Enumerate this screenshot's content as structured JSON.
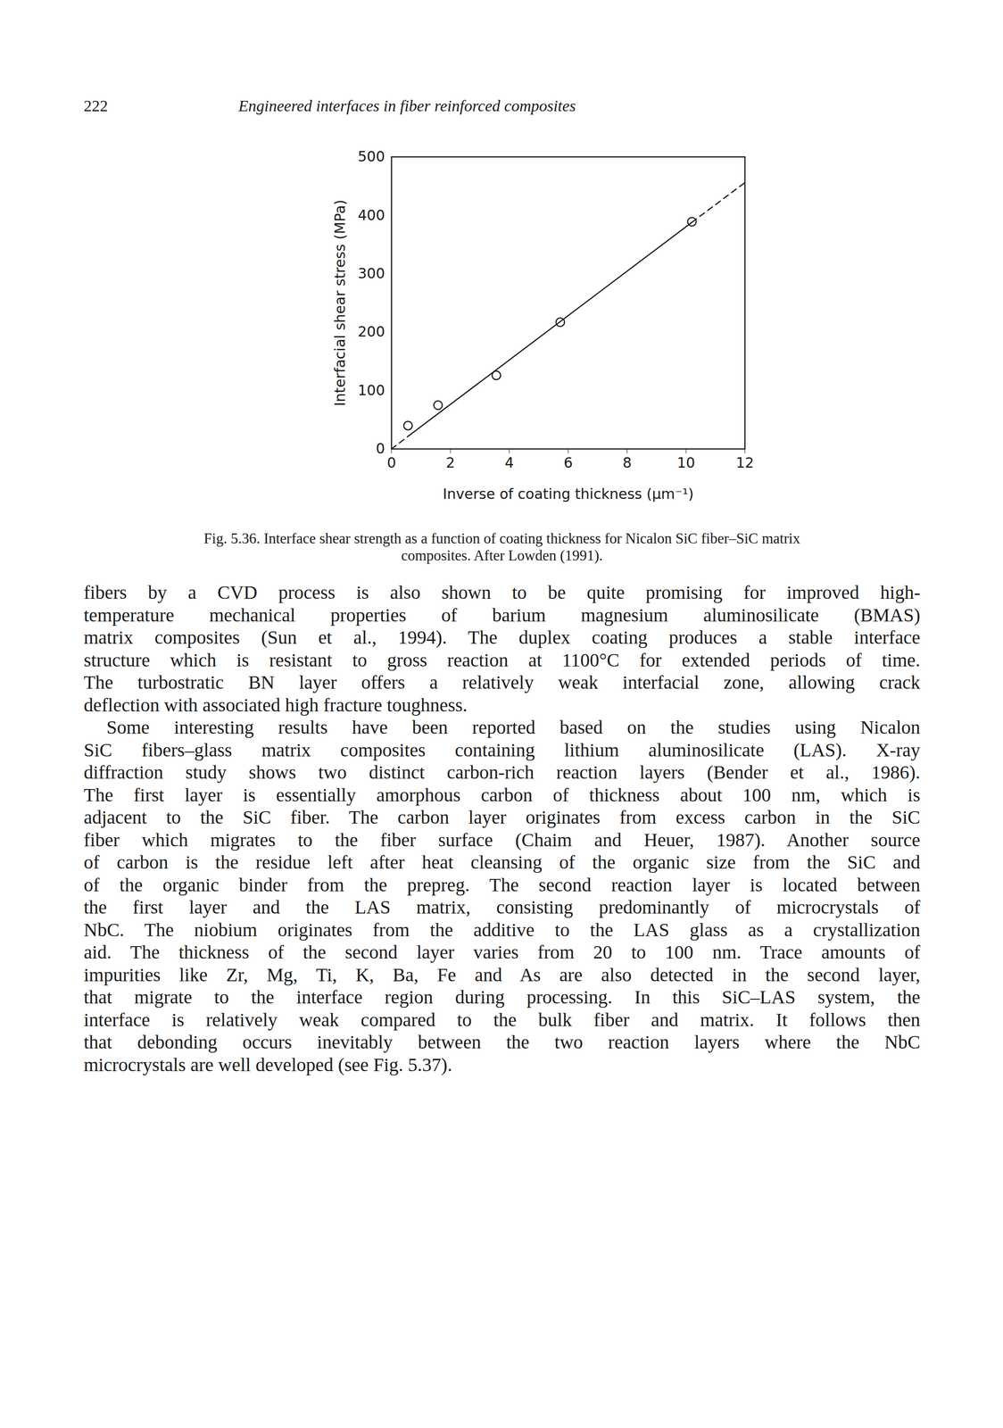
{
  "header": {
    "page_number": "222",
    "running_title": "Engineered interfaces in fiber reinforced composites"
  },
  "chart_data": {
    "type": "scatter",
    "x_label": "Inverse of coating thickness (µm⁻¹)",
    "y_label": "Interfacial shear stress (MPa)",
    "xlim": [
      0,
      12
    ],
    "ylim": [
      0,
      500
    ],
    "xticks": [
      0,
      2,
      4,
      6,
      8,
      10,
      12
    ],
    "yticks": [
      0,
      100,
      200,
      300,
      400,
      500
    ],
    "grid": false,
    "color": "#1a1a1a",
    "series": [
      {
        "type": "scatter",
        "marker": "circle",
        "x": [
          0.56,
          1.58,
          3.56,
          5.73,
          10.2
        ],
        "values": [
          40,
          75,
          126,
          217,
          389
        ]
      },
      {
        "type": "line",
        "line_style": "solid",
        "x": [
          0.6,
          10.2
        ],
        "values": [
          23,
          388
        ]
      },
      {
        "type": "line",
        "line_style": "dashed",
        "x": [
          0,
          0.6
        ],
        "values": [
          0,
          23
        ]
      },
      {
        "type": "line",
        "line_style": "dashed",
        "x": [
          10.2,
          12
        ],
        "values": [
          388,
          456
        ]
      }
    ]
  },
  "caption": [
    "Fig. 5.36. Interface shear strength as a function of coating thickness for Nicalon SiC fiber–SiC matrix",
    "composites. After Lowden (1991)."
  ],
  "paragraphs": [
    {
      "indent": false,
      "lines": [
        "fibers by a CVD process is also shown to be quite promising for improved high-",
        "temperature mechanical properties of barium magnesium aluminosilicate (BMAS)",
        "matrix composites (Sun et al., 1994). The duplex coating produces a stable interface",
        "structure which is resistant to gross reaction at 1100°C for extended periods of time.",
        "The turbostratic BN layer offers a relatively weak interfacial zone, allowing crack",
        "deflection with associated high fracture toughness."
      ]
    },
    {
      "indent": true,
      "lines": [
        "Some interesting results have been reported based on the studies using Nicalon",
        "SiC fibers–glass matrix composites containing lithium aluminosilicate (LAS). X-ray",
        "diffraction study shows two distinct carbon-rich reaction layers (Bender et al., 1986).",
        "The first layer is essentially amorphous carbon of thickness about 100 nm, which is",
        "adjacent to the SiC fiber. The carbon layer originates from excess carbon in the SiC",
        "fiber which migrates to the fiber surface (Chaim and Heuer, 1987). Another source",
        "of carbon is the residue left after heat cleansing of the organic size from the SiC and",
        "of the organic binder from the prepreg. The second reaction layer is located between",
        "the first layer and the LAS matrix, consisting predominantly of microcrystals of",
        "NbC. The niobium originates from the additive to the LAS glass as a crystallization",
        "aid. The thickness of the second layer varies from 20 to 100 nm. Trace amounts of",
        "impurities like Zr, Mg, Ti, K, Ba, Fe and As are also detected in the second layer,",
        "that migrate to the interface region during processing. In this SiC–LAS system, the",
        "interface is relatively weak compared to the bulk fiber and matrix. It follows then",
        "that debonding occurs inevitably between the two reaction layers where the NbC",
        "microcrystals are well developed (see Fig. 5.37)."
      ]
    }
  ]
}
